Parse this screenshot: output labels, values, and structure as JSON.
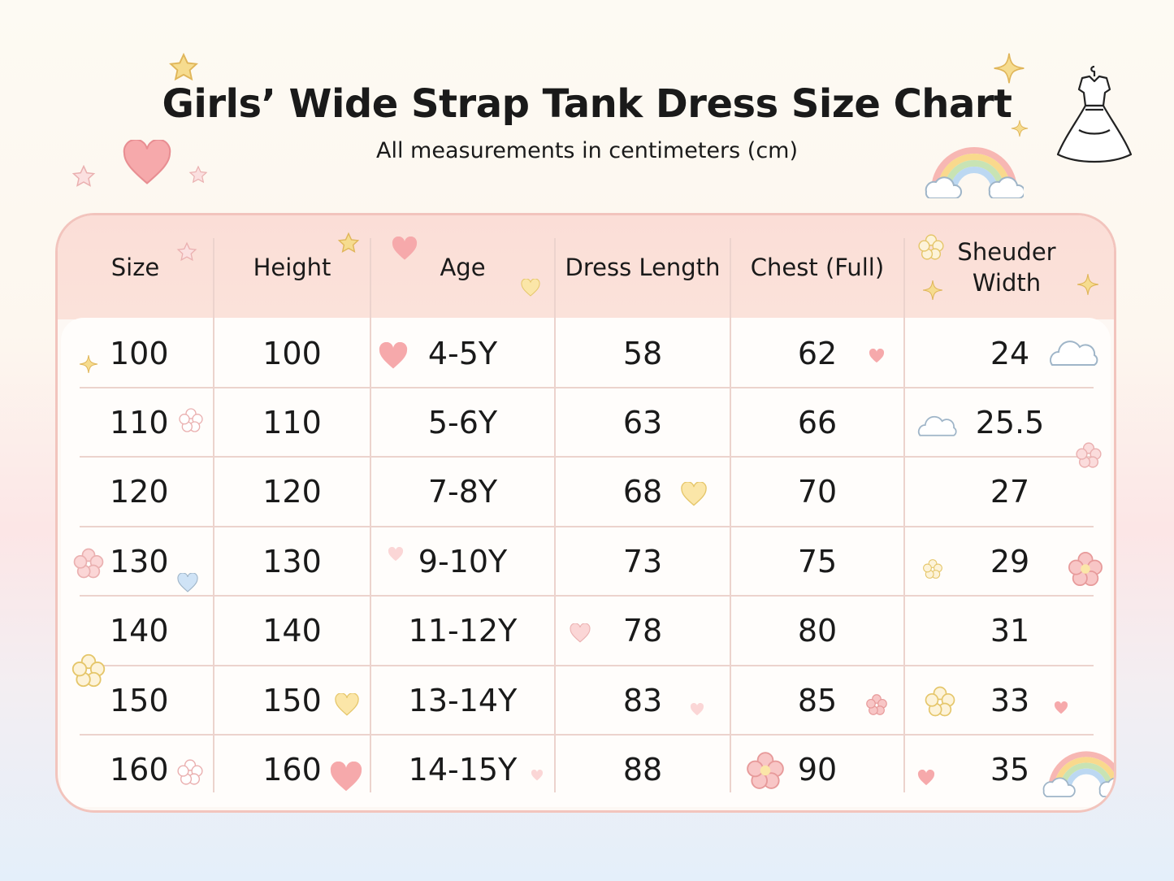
{
  "title": "Girls’ Wide Strap Tank Dress Size Chart",
  "subtitle": "All measurements in centimeters (cm)",
  "table": {
    "headers": [
      "Size",
      "Height",
      "Age",
      "Dress Length",
      "Chest (Full)",
      "Sheuder Width"
    ],
    "rows": [
      [
        "100",
        "100",
        "4-5Y",
        "58",
        "62",
        "24"
      ],
      [
        "110",
        "110",
        "5-6Y",
        "63",
        "66",
        "25.5"
      ],
      [
        "120",
        "120",
        "7-8Y",
        "68",
        "70",
        "27"
      ],
      [
        "130",
        "130",
        "9-10Y",
        "73",
        "75",
        "29"
      ],
      [
        "140",
        "140",
        "11-12Y",
        "78",
        "80",
        "31"
      ],
      [
        "150",
        "150",
        "13-14Y",
        "83",
        "85",
        "33"
      ],
      [
        "160",
        "160",
        "14-15Y",
        "88",
        "90",
        "35"
      ]
    ]
  },
  "colors": {
    "header_bg": "#fbded7",
    "border": "#f2c4bd",
    "heart": "#f4a7a9",
    "star": "#f3d27a",
    "flower": "#f4b7b7"
  },
  "icons": [
    "star-icon",
    "heart-icon",
    "flower-icon",
    "cloud-icon",
    "rainbow-icon",
    "dress-icon"
  ]
}
